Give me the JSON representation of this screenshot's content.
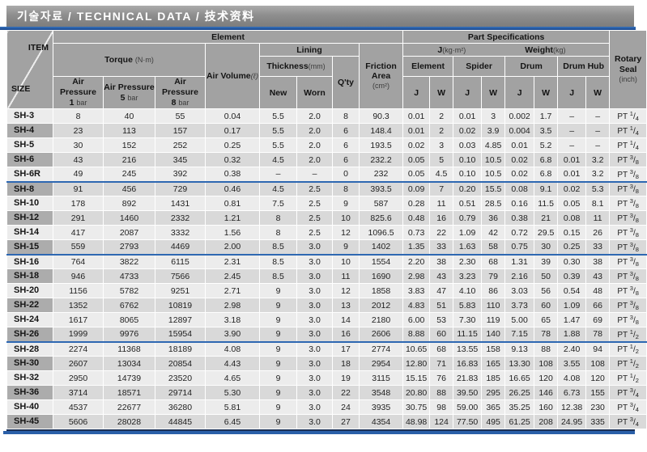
{
  "title": "기술자료 / TECHNICAL DATA / 技术资料",
  "colors": {
    "accent_blue": "#2a5fa8",
    "title_bar_gray": "#8e8e8e",
    "header_gray": "#a2a2a2",
    "size_column_gray": "#b2b2b2",
    "row_light": "#ececec",
    "row_dark": "#d9d9d9"
  },
  "table": {
    "header": {
      "item": "ITEM",
      "size": "SIZE",
      "element_group": "Element",
      "part_spec_group": "Part Specifications",
      "torque": "Torque",
      "torque_unit": "(N·m)",
      "air_pressure": "Air Pressure",
      "pressures": [
        "1",
        "5",
        "8"
      ],
      "bar": "bar",
      "air_volume": "Air Volume",
      "air_volume_unit": "(ℓ)",
      "lining": "Lining",
      "thickness": "Thickness",
      "thickness_unit": "(mm)",
      "new": "New",
      "worn": "Worn",
      "qty": "Q'ty",
      "friction_line1": "Friction",
      "friction_line2": "Area",
      "friction_unit": "(cm²)",
      "j": "J",
      "j_unit": "(kg·m²)",
      "weight": "Weight",
      "weight_unit": "(kg)",
      "spec_groups": [
        "Element",
        "Spider",
        "Drum",
        "Drum Hub"
      ],
      "jw_labels": [
        "J",
        "W"
      ],
      "rotary_line1": "Rotary",
      "rotary_line2": "Seal",
      "rotary_unit": "(inch)"
    },
    "rows": [
      {
        "size": "SH-3",
        "t1": "8",
        "t5": "40",
        "t8": "55",
        "vol": "0.04",
        "new": "5.5",
        "worn": "2.0",
        "qty": "8",
        "fric": "90.3",
        "ej": "0.01",
        "ew": "2",
        "sj": "0.01",
        "sw": "3",
        "dj": "0.002",
        "dw": "1.7",
        "hj": "–",
        "hw": "–",
        "seal": {
          "prefix": "PT",
          "num": "1",
          "den": "4"
        },
        "sep": false
      },
      {
        "size": "SH-4",
        "t1": "23",
        "t5": "113",
        "t8": "157",
        "vol": "0.17",
        "new": "5.5",
        "worn": "2.0",
        "qty": "6",
        "fric": "148.4",
        "ej": "0.01",
        "ew": "2",
        "sj": "0.02",
        "sw": "3.9",
        "dj": "0.004",
        "dw": "3.5",
        "hj": "–",
        "hw": "–",
        "seal": {
          "prefix": "PT",
          "num": "1",
          "den": "4"
        },
        "sep": false
      },
      {
        "size": "SH-5",
        "t1": "30",
        "t5": "152",
        "t8": "252",
        "vol": "0.25",
        "new": "5.5",
        "worn": "2.0",
        "qty": "6",
        "fric": "193.5",
        "ej": "0.02",
        "ew": "3",
        "sj": "0.03",
        "sw": "4.85",
        "dj": "0.01",
        "dw": "5.2",
        "hj": "–",
        "hw": "–",
        "seal": {
          "prefix": "PT",
          "num": "1",
          "den": "4"
        },
        "sep": false
      },
      {
        "size": "SH-6",
        "t1": "43",
        "t5": "216",
        "t8": "345",
        "vol": "0.32",
        "new": "4.5",
        "worn": "2.0",
        "qty": "6",
        "fric": "232.2",
        "ej": "0.05",
        "ew": "5",
        "sj": "0.10",
        "sw": "10.5",
        "dj": "0.02",
        "dw": "6.8",
        "hj": "0.01",
        "hw": "3.2",
        "seal": {
          "prefix": "PT",
          "num": "3",
          "den": "8"
        },
        "sep": false
      },
      {
        "size": "SH-6R",
        "t1": "49",
        "t5": "245",
        "t8": "392",
        "vol": "0.38",
        "new": "–",
        "worn": "–",
        "qty": "0",
        "fric": "232",
        "ej": "0.05",
        "ew": "4.5",
        "sj": "0.10",
        "sw": "10.5",
        "dj": "0.02",
        "dw": "6.8",
        "hj": "0.01",
        "hw": "3.2",
        "seal": {
          "prefix": "PT",
          "num": "3",
          "den": "8"
        },
        "sep": false
      },
      {
        "size": "SH-8",
        "t1": "91",
        "t5": "456",
        "t8": "729",
        "vol": "0.46",
        "new": "4.5",
        "worn": "2.5",
        "qty": "8",
        "fric": "393.5",
        "ej": "0.09",
        "ew": "7",
        "sj": "0.20",
        "sw": "15.5",
        "dj": "0.08",
        "dw": "9.1",
        "hj": "0.02",
        "hw": "5.3",
        "seal": {
          "prefix": "PT",
          "num": "3",
          "den": "8"
        },
        "sep": true
      },
      {
        "size": "SH-10",
        "t1": "178",
        "t5": "892",
        "t8": "1431",
        "vol": "0.81",
        "new": "7.5",
        "worn": "2.5",
        "qty": "9",
        "fric": "587",
        "ej": "0.28",
        "ew": "11",
        "sj": "0.51",
        "sw": "28.5",
        "dj": "0.16",
        "dw": "11.5",
        "hj": "0.05",
        "hw": "8.1",
        "seal": {
          "prefix": "PT",
          "num": "3",
          "den": "8"
        },
        "sep": false
      },
      {
        "size": "SH-12",
        "t1": "291",
        "t5": "1460",
        "t8": "2332",
        "vol": "1.21",
        "new": "8",
        "worn": "2.5",
        "qty": "10",
        "fric": "825.6",
        "ej": "0.48",
        "ew": "16",
        "sj": "0.79",
        "sw": "36",
        "dj": "0.38",
        "dw": "21",
        "hj": "0.08",
        "hw": "11",
        "seal": {
          "prefix": "PT",
          "num": "3",
          "den": "8"
        },
        "sep": false
      },
      {
        "size": "SH-14",
        "t1": "417",
        "t5": "2087",
        "t8": "3332",
        "vol": "1.56",
        "new": "8",
        "worn": "2.5",
        "qty": "12",
        "fric": "1096.5",
        "ej": "0.73",
        "ew": "22",
        "sj": "1.09",
        "sw": "42",
        "dj": "0.72",
        "dw": "29.5",
        "hj": "0.15",
        "hw": "26",
        "seal": {
          "prefix": "PT",
          "num": "3",
          "den": "8"
        },
        "sep": false
      },
      {
        "size": "SH-15",
        "t1": "559",
        "t5": "2793",
        "t8": "4469",
        "vol": "2.00",
        "new": "8.5",
        "worn": "3.0",
        "qty": "9",
        "fric": "1402",
        "ej": "1.35",
        "ew": "33",
        "sj": "1.63",
        "sw": "58",
        "dj": "0.75",
        "dw": "30",
        "hj": "0.25",
        "hw": "33",
        "seal": {
          "prefix": "PT",
          "num": "3",
          "den": "8"
        },
        "sep": false
      },
      {
        "size": "SH-16",
        "t1": "764",
        "t5": "3822",
        "t8": "6115",
        "vol": "2.31",
        "new": "8.5",
        "worn": "3.0",
        "qty": "10",
        "fric": "1554",
        "ej": "2.20",
        "ew": "38",
        "sj": "2.30",
        "sw": "68",
        "dj": "1.31",
        "dw": "39",
        "hj": "0.30",
        "hw": "38",
        "seal": {
          "prefix": "PT",
          "num": "3",
          "den": "8"
        },
        "sep": true
      },
      {
        "size": "SH-18",
        "t1": "946",
        "t5": "4733",
        "t8": "7566",
        "vol": "2.45",
        "new": "8.5",
        "worn": "3.0",
        "qty": "11",
        "fric": "1690",
        "ej": "2.98",
        "ew": "43",
        "sj": "3.23",
        "sw": "79",
        "dj": "2.16",
        "dw": "50",
        "hj": "0.39",
        "hw": "43",
        "seal": {
          "prefix": "PT",
          "num": "3",
          "den": "8"
        },
        "sep": false
      },
      {
        "size": "SH-20",
        "t1": "1156",
        "t5": "5782",
        "t8": "9251",
        "vol": "2.71",
        "new": "9",
        "worn": "3.0",
        "qty": "12",
        "fric": "1858",
        "ej": "3.83",
        "ew": "47",
        "sj": "4.10",
        "sw": "86",
        "dj": "3.03",
        "dw": "56",
        "hj": "0.54",
        "hw": "48",
        "seal": {
          "prefix": "PT",
          "num": "3",
          "den": "8"
        },
        "sep": false
      },
      {
        "size": "SH-22",
        "t1": "1352",
        "t5": "6762",
        "t8": "10819",
        "vol": "2.98",
        "new": "9",
        "worn": "3.0",
        "qty": "13",
        "fric": "2012",
        "ej": "4.83",
        "ew": "51",
        "sj": "5.83",
        "sw": "110",
        "dj": "3.73",
        "dw": "60",
        "hj": "1.09",
        "hw": "66",
        "seal": {
          "prefix": "PT",
          "num": "3",
          "den": "8"
        },
        "sep": false
      },
      {
        "size": "SH-24",
        "t1": "1617",
        "t5": "8065",
        "t8": "12897",
        "vol": "3.18",
        "new": "9",
        "worn": "3.0",
        "qty": "14",
        "fric": "2180",
        "ej": "6.00",
        "ew": "53",
        "sj": "7.30",
        "sw": "119",
        "dj": "5.00",
        "dw": "65",
        "hj": "1.47",
        "hw": "69",
        "seal": {
          "prefix": "PT",
          "num": "3",
          "den": "8"
        },
        "sep": false
      },
      {
        "size": "SH-26",
        "t1": "1999",
        "t5": "9976",
        "t8": "15954",
        "vol": "3.90",
        "new": "9",
        "worn": "3.0",
        "qty": "16",
        "fric": "2606",
        "ej": "8.88",
        "ew": "60",
        "sj": "11.15",
        "sw": "140",
        "dj": "7.15",
        "dw": "78",
        "hj": "1.88",
        "hw": "78",
        "seal": {
          "prefix": "PT",
          "num": "1",
          "den": "2"
        },
        "sep": false
      },
      {
        "size": "SH-28",
        "t1": "2274",
        "t5": "11368",
        "t8": "18189",
        "vol": "4.08",
        "new": "9",
        "worn": "3.0",
        "qty": "17",
        "fric": "2774",
        "ej": "10.65",
        "ew": "68",
        "sj": "13.55",
        "sw": "158",
        "dj": "9.13",
        "dw": "88",
        "hj": "2.40",
        "hw": "94",
        "seal": {
          "prefix": "PT",
          "num": "1",
          "den": "2"
        },
        "sep": true
      },
      {
        "size": "SH-30",
        "t1": "2607",
        "t5": "13034",
        "t8": "20854",
        "vol": "4.43",
        "new": "9",
        "worn": "3.0",
        "qty": "18",
        "fric": "2954",
        "ej": "12.80",
        "ew": "71",
        "sj": "16.83",
        "sw": "165",
        "dj": "13.30",
        "dw": "108",
        "hj": "3.55",
        "hw": "108",
        "seal": {
          "prefix": "PT",
          "num": "1",
          "den": "2"
        },
        "sep": false
      },
      {
        "size": "SH-32",
        "t1": "2950",
        "t5": "14739",
        "t8": "23520",
        "vol": "4.65",
        "new": "9",
        "worn": "3.0",
        "qty": "19",
        "fric": "3115",
        "ej": "15.15",
        "ew": "76",
        "sj": "21.83",
        "sw": "185",
        "dj": "16.65",
        "dw": "120",
        "hj": "4.08",
        "hw": "120",
        "seal": {
          "prefix": "PT",
          "num": "1",
          "den": "2"
        },
        "sep": false
      },
      {
        "size": "SH-36",
        "t1": "3714",
        "t5": "18571",
        "t8": "29714",
        "vol": "5.30",
        "new": "9",
        "worn": "3.0",
        "qty": "22",
        "fric": "3548",
        "ej": "20.80",
        "ew": "88",
        "sj": "39.50",
        "sw": "295",
        "dj": "26.25",
        "dw": "146",
        "hj": "6.73",
        "hw": "155",
        "seal": {
          "prefix": "PT",
          "num": "3",
          "den": "4"
        },
        "sep": false
      },
      {
        "size": "SH-40",
        "t1": "4537",
        "t5": "22677",
        "t8": "36280",
        "vol": "5.81",
        "new": "9",
        "worn": "3.0",
        "qty": "24",
        "fric": "3935",
        "ej": "30.75",
        "ew": "98",
        "sj": "59.00",
        "sw": "365",
        "dj": "35.25",
        "dw": "160",
        "hj": "12.38",
        "hw": "230",
        "seal": {
          "prefix": "PT",
          "num": "3",
          "den": "4"
        },
        "sep": false
      },
      {
        "size": "SH-45",
        "t1": "5606",
        "t5": "28028",
        "t8": "44845",
        "vol": "6.45",
        "new": "9",
        "worn": "3.0",
        "qty": "27",
        "fric": "4354",
        "ej": "48.98",
        "ew": "124",
        "sj": "77.50",
        "sw": "495",
        "dj": "61.25",
        "dw": "208",
        "hj": "24.95",
        "hw": "335",
        "seal": {
          "prefix": "PT",
          "num": "3",
          "den": "4"
        },
        "sep": false
      }
    ]
  }
}
